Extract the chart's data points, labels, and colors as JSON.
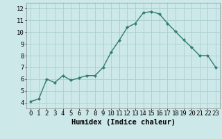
{
  "x": [
    0,
    1,
    2,
    3,
    4,
    5,
    6,
    7,
    8,
    9,
    10,
    11,
    12,
    13,
    14,
    15,
    16,
    17,
    18,
    19,
    20,
    21,
    22,
    23
  ],
  "y": [
    4.1,
    4.3,
    6.0,
    5.7,
    6.3,
    5.9,
    6.1,
    6.3,
    6.3,
    7.0,
    8.3,
    9.3,
    10.4,
    10.75,
    11.65,
    11.75,
    11.55,
    10.75,
    10.05,
    9.35,
    8.7,
    8.0,
    8.0,
    7.0
  ],
  "line_color": "#2e7d6e",
  "marker": "D",
  "marker_size": 2.2,
  "bg_color": "#cde8e8",
  "grid_color": "#aacece",
  "xlabel": "Humidex (Indice chaleur)",
  "xlim": [
    -0.5,
    23.5
  ],
  "ylim": [
    3.5,
    12.5
  ],
  "yticks": [
    4,
    5,
    6,
    7,
    8,
    9,
    10,
    11,
    12
  ],
  "xtick_labels": [
    "0",
    "1",
    "2",
    "3",
    "4",
    "5",
    "6",
    "7",
    "8",
    "9",
    "10",
    "11",
    "12",
    "13",
    "14",
    "15",
    "16",
    "17",
    "18",
    "19",
    "20",
    "21",
    "22",
    "23"
  ],
  "xlabel_fontsize": 7.5,
  "tick_fontsize": 6.5,
  "line_width": 1.0
}
